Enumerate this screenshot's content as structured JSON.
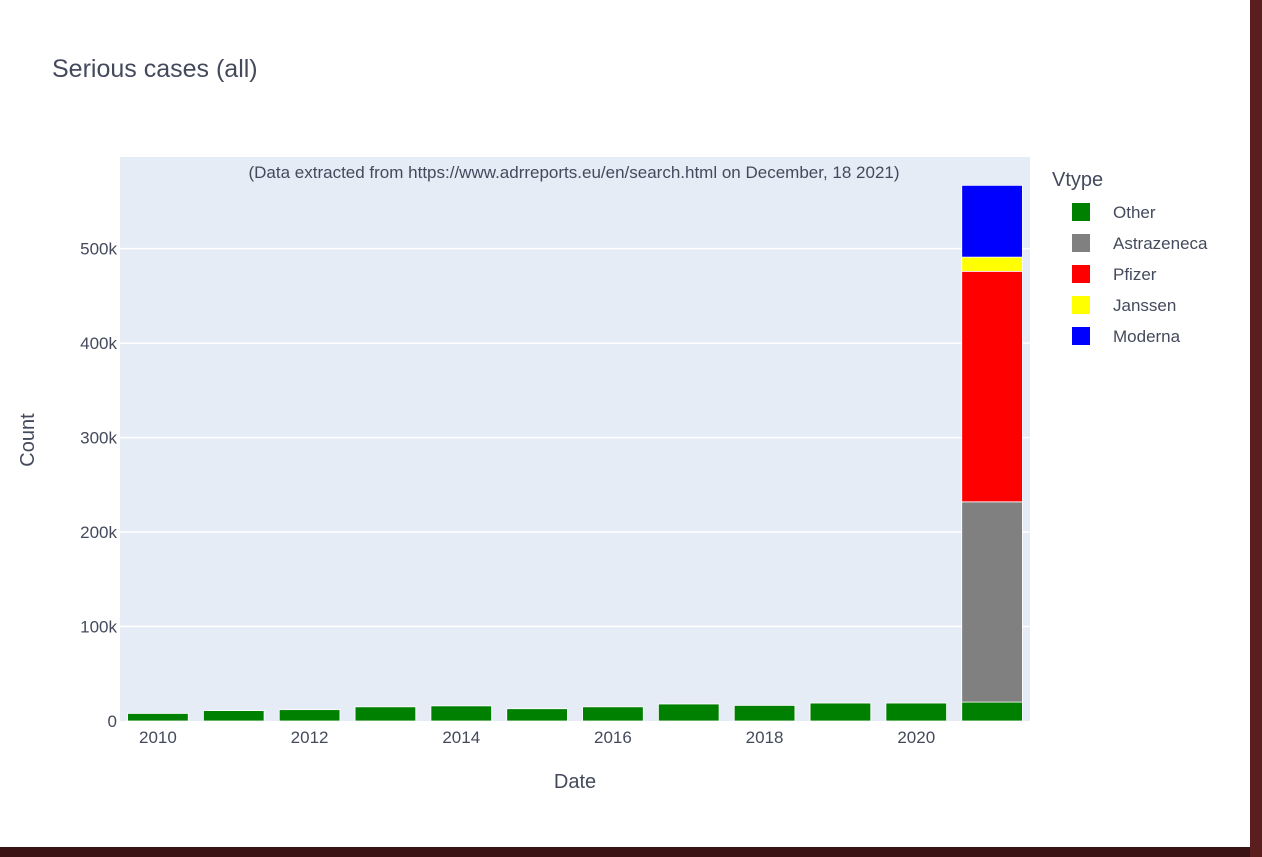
{
  "chart_data": {
    "type": "bar",
    "barmode": "stack",
    "title": "Serious cases (all)",
    "annotation": "(Data extracted from https://www.adrreports.eu/en/search.html on December, 18 2021)",
    "xlabel": "Date",
    "ylabel": "Count",
    "x": [
      2010,
      2011,
      2012,
      2013,
      2014,
      2015,
      2016,
      2017,
      2018,
      2019,
      2020,
      2021
    ],
    "xticks": [
      2010,
      2012,
      2014,
      2016,
      2018,
      2020
    ],
    "xtick_labels": [
      "2010",
      "2012",
      "2014",
      "2016",
      "2018",
      "2020"
    ],
    "xlim": [
      2009.5,
      2021.5
    ],
    "yticks": [
      0,
      100000,
      200000,
      300000,
      400000,
      500000
    ],
    "ytick_labels": [
      "0",
      "100k",
      "200k",
      "300k",
      "400k",
      "500k"
    ],
    "ylim": [
      0,
      597000
    ],
    "grid": true,
    "legend": {
      "title": "Vtype",
      "placement": "right"
    },
    "series": [
      {
        "name": "Other",
        "color": "#008000",
        "values": [
          8000,
          11000,
          12000,
          15000,
          16000,
          13000,
          15000,
          18000,
          16500,
          19000,
          19000,
          20000
        ]
      },
      {
        "name": "Astrazeneca",
        "color": "#808080",
        "values": [
          0,
          0,
          0,
          0,
          0,
          0,
          0,
          0,
          0,
          0,
          0,
          212000
        ]
      },
      {
        "name": "Pfizer",
        "color": "#ff0000",
        "values": [
          0,
          0,
          0,
          0,
          0,
          0,
          0,
          0,
          0,
          0,
          0,
          244000
        ]
      },
      {
        "name": "Janssen",
        "color": "#ffff00",
        "values": [
          0,
          0,
          0,
          0,
          0,
          0,
          0,
          0,
          0,
          0,
          0,
          15000
        ]
      },
      {
        "name": "Moderna",
        "color": "#0000ff",
        "values": [
          0,
          0,
          0,
          0,
          0,
          0,
          0,
          0,
          0,
          0,
          0,
          76000
        ]
      }
    ],
    "plot_background": "#e5ecf6",
    "grid_color": "#ffffff"
  }
}
